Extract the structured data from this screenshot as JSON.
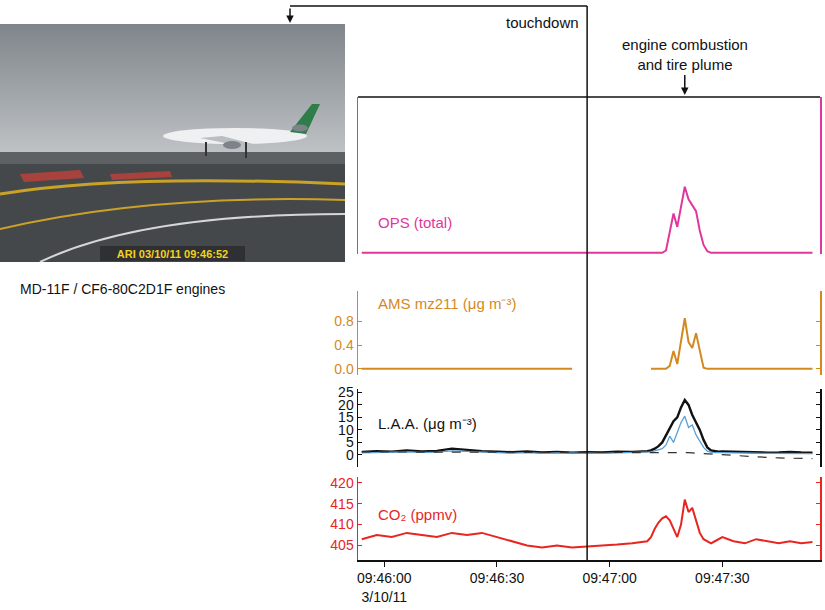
{
  "chart_data": {
    "type": "line",
    "x": [
      "2011-03-10 09:45:54",
      "2011-03-10 09:45:58",
      "2011-03-10 09:46:02",
      "2011-03-10 09:46:06",
      "2011-03-10 09:46:10",
      "2011-03-10 09:46:14",
      "2011-03-10 09:46:18",
      "2011-03-10 09:46:22",
      "2011-03-10 09:46:26",
      "2011-03-10 09:46:30",
      "2011-03-10 09:46:34",
      "2011-03-10 09:46:38",
      "2011-03-10 09:46:42",
      "2011-03-10 09:46:46",
      "2011-03-10 09:46:50",
      "2011-03-10 09:46:54",
      "2011-03-10 09:46:58",
      "2011-03-10 09:47:02",
      "2011-03-10 09:47:06",
      "2011-03-10 09:47:10",
      "2011-03-10 09:47:11",
      "2011-03-10 09:47:12",
      "2011-03-10 09:47:13",
      "2011-03-10 09:47:14",
      "2011-03-10 09:47:15",
      "2011-03-10 09:47:16",
      "2011-03-10 09:47:17",
      "2011-03-10 09:47:18",
      "2011-03-10 09:47:19",
      "2011-03-10 09:47:20",
      "2011-03-10 09:47:21",
      "2011-03-10 09:47:22",
      "2011-03-10 09:47:23",
      "2011-03-10 09:47:24",
      "2011-03-10 09:47:25",
      "2011-03-10 09:47:26",
      "2011-03-10 09:47:27",
      "2011-03-10 09:47:28",
      "2011-03-10 09:47:29",
      "2011-03-10 09:47:30",
      "2011-03-10 09:47:33",
      "2011-03-10 09:47:36",
      "2011-03-10 09:47:39",
      "2011-03-10 09:47:42",
      "2011-03-10 09:47:45",
      "2011-03-10 09:47:48",
      "2011-03-10 09:47:51",
      "2011-03-10 09:47:54"
    ],
    "xlim": [
      "2011-03-10 09:45:53",
      "2011-03-10 09:47:56"
    ],
    "xticks": [
      {
        "value": "2011-03-10 09:46:00",
        "label": "09:46:00\n3/10/11"
      },
      {
        "value": "2011-03-10 09:46:30",
        "label": "09:46:30"
      },
      {
        "value": "2011-03-10 09:47:00",
        "label": "09:47:00"
      },
      {
        "value": "2011-03-10 09:47:30",
        "label": "09:47:30"
      }
    ],
    "grid": false,
    "panels": [
      {
        "title": "OPS (total)",
        "ylim": [
          0,
          2
        ],
        "tick_labels": false,
        "series": [
          {
            "color": "#e0379d",
            "line_style": "solid",
            "values": [
              0.02,
              0.02,
              0.02,
              0.02,
              0.02,
              0.02,
              0.02,
              0.02,
              0.02,
              0.02,
              0.02,
              0.02,
              0.02,
              0.02,
              0.02,
              0.02,
              0.02,
              0.02,
              0.02,
              0.02,
              0.02,
              0.02,
              0.02,
              0.02,
              0.05,
              0.3,
              0.52,
              0.35,
              0.6,
              0.86,
              0.7,
              0.62,
              0.55,
              0.3,
              0.12,
              0.04,
              0.02,
              0.02,
              0.02,
              0.02,
              0.02,
              0.02,
              0.02,
              0.02,
              0.02,
              0.02,
              0.02,
              0.02
            ]
          }
        ]
      },
      {
        "title": "AMS mz211 (μg m⁻³)",
        "ylim": [
          -0.1,
          1.3
        ],
        "yticks": [
          {
            "value": 0,
            "label": "0.0"
          },
          0.4,
          0.8
        ],
        "series": [
          {
            "color": "#d4891f",
            "line_style": "solid",
            "values": [
              0,
              0,
              0,
              0,
              0,
              0,
              0,
              0,
              0,
              0,
              0,
              0,
              0,
              0,
              0,
              null,
              null,
              null,
              null,
              null,
              0,
              0,
              0,
              0,
              0,
              0.05,
              0.3,
              0.08,
              0.45,
              0.85,
              0.45,
              0.35,
              0.6,
              0.3,
              0.02,
              0,
              0,
              0,
              0,
              0,
              0,
              0,
              0,
              0,
              0,
              0,
              0,
              0
            ]
          }
        ]
      },
      {
        "title": "L.A.A. (μg m⁻³)",
        "ylim": [
          -5,
          26.5
        ],
        "yticks": [
          0,
          5,
          10,
          15,
          20,
          25
        ],
        "series": [
          {
            "color": "#111111",
            "line_style": "solid",
            "values": [
              1.2,
              1.5,
              1.3,
              1.8,
              1.4,
              1.6,
              2.5,
              1.9,
              1.5,
              1.3,
              1.1,
              1.4,
              1.0,
              1.2,
              0.9,
              1.1,
              1.0,
              1.3,
              1.2,
              1.5,
              1.8,
              2.5,
              3.5,
              5.0,
              8.0,
              11.0,
              13.5,
              15.0,
              19.0,
              22.0,
              20.0,
              16.0,
              13.0,
              10.0,
              6.0,
              3.0,
              1.8,
              1.5,
              1.3,
              1.4,
              1.2,
              1.0,
              1.1,
              0.9,
              1.0,
              1.2,
              1.0,
              0.9
            ]
          },
          {
            "color": "#5aa0d8",
            "line_style": "solid",
            "values": [
              0.8,
              1.0,
              0.9,
              1.2,
              1.0,
              1.1,
              1.6,
              1.3,
              1.0,
              0.9,
              0.7,
              0.9,
              0.6,
              0.8,
              0.6,
              0.7,
              0.6,
              0.8,
              0.8,
              1.0,
              1.2,
              1.6,
              2.0,
              2.5,
              4.0,
              7.5,
              5.0,
              9.0,
              13.0,
              15.5,
              11.0,
              12.0,
              8.0,
              5.5,
              3.0,
              1.5,
              1.0,
              0.9,
              0.8,
              0.9,
              0.8,
              0.6,
              0.7,
              0.6,
              0.6,
              0.8,
              0.6,
              0.5
            ]
          },
          {
            "color": "#333333",
            "line_style": "dashed",
            "values": [
              1.2,
              1.2,
              1.2,
              1.1,
              1.1,
              1.1,
              1.1,
              1.0,
              1.0,
              1.0,
              1.0,
              0.9,
              0.9,
              0.9,
              0.9,
              0.9,
              0.9,
              0.9,
              1.0,
              1.0,
              1.0,
              1.1,
              1.1,
              1.2,
              1.2,
              1.2,
              1.2,
              1.2,
              1.1,
              1.0,
              0.9,
              0.8,
              0.7,
              0.6,
              0.5,
              0.4,
              0.3,
              0.2,
              0.1,
              0.0,
              -0.3,
              -0.6,
              -0.8,
              -1.0,
              -1.2,
              -1.3,
              -1.4,
              -1.5
            ]
          }
        ]
      },
      {
        "title": "CO₂ (ppmv)",
        "ylim": [
          401.5,
          421.5
        ],
        "yticks": [
          405,
          410,
          415,
          420
        ],
        "series": [
          {
            "color": "#e8251f",
            "line_style": "solid",
            "values": [
              406.5,
              407.5,
              407.0,
              408.0,
              407.5,
              407.0,
              408.0,
              407.5,
              408.0,
              407.0,
              406.0,
              405.0,
              404.5,
              405.0,
              404.5,
              404.8,
              405.0,
              405.2,
              405.5,
              406.0,
              407.0,
              409.0,
              410.5,
              411.5,
              412.0,
              411.0,
              409.0,
              407.0,
              410.0,
              416.0,
              413.0,
              414.0,
              411.0,
              408.0,
              406.5,
              406.0,
              405.5,
              406.0,
              406.5,
              407.0,
              406.0,
              405.5,
              406.5,
              406.0,
              405.5,
              406.0,
              405.5,
              405.8
            ]
          }
        ]
      }
    ],
    "annotations": [
      {
        "type": "line",
        "text": "touchdown",
        "x": "2011-03-10 09:46:54"
      },
      {
        "type": "arrow",
        "text": "engine combustion and tire plume",
        "x": "2011-03-10 09:47:20"
      }
    ]
  },
  "photo": {
    "caption": "ARI 03/10/11 09:46:52",
    "label": "MD-11F / CF6-80C2D1F engines"
  }
}
